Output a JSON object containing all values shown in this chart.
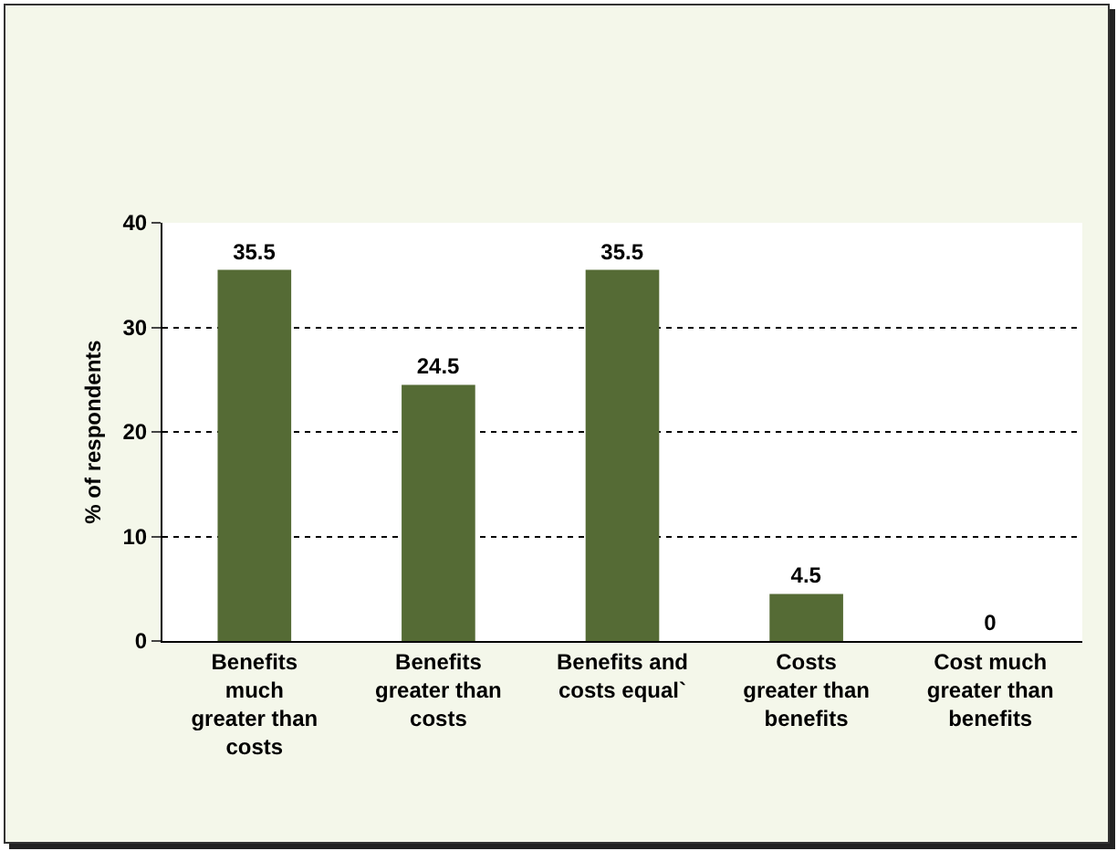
{
  "chart_data": {
    "type": "bar",
    "ylabel": "% of respondents",
    "categories": [
      "Benefits much greater than costs",
      "Benefits greater than costs",
      "Benefits and costs equal`",
      "Costs greater than benefits",
      "Cost much greater than benefits"
    ],
    "values": [
      35.5,
      24.5,
      35.5,
      4.5,
      0
    ],
    "color": "#556b35",
    "ylim": [
      0,
      40
    ],
    "yticks": [
      0,
      10,
      20,
      30,
      40
    ],
    "grid": "y",
    "data_labels": true
  }
}
